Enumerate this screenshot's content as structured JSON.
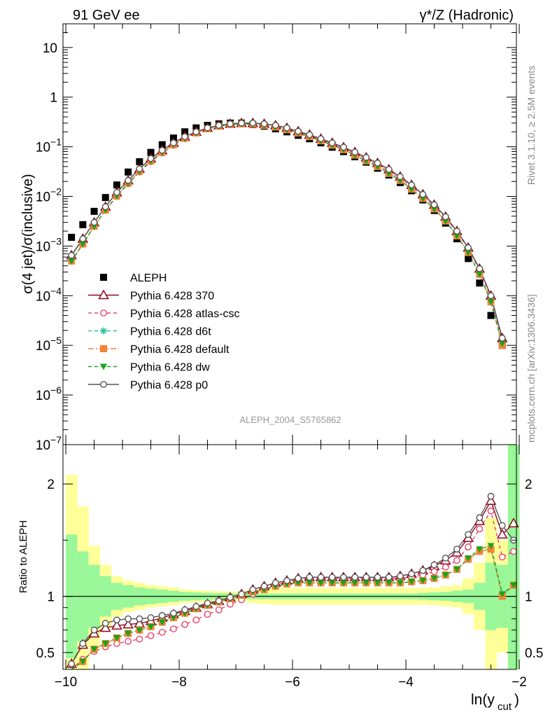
{
  "header": {
    "left": "91 GeV ee",
    "right": "γ*/Z (Hadronic)"
  },
  "side_text": {
    "rivet": "Rivet 3.1.10, ≥ 2.5M events",
    "mcplots": "mcplots.cern.ch [arXiv:1306.3436]"
  },
  "analysis_label": "ALEPH_2004_S5765862",
  "colors": {
    "data": "#000000",
    "p370": "#8b0a1e",
    "atlas": "#e8446a",
    "d6t": "#27c39e",
    "default": "#f28437",
    "dw": "#1aa31a",
    "p0": "#555555",
    "band_inner": "#99f799",
    "band_outer": "#ffff99"
  },
  "chart_data": [
    {
      "type": "line",
      "xlabel": "ln(y_cut)",
      "ylabel": "σ(4 jet)/σ(inclusive)",
      "xlim": [
        -10.05,
        -2.05
      ],
      "ylim": [
        1e-07,
        30
      ],
      "yscale": "log",
      "legend_position": "lower-left",
      "x_ticks": [
        "−10",
        "−8",
        "−6",
        "−4",
        "−2"
      ],
      "y_ticks": [
        "10",
        "1",
        "10⁻¹",
        "10⁻²",
        "10⁻³",
        "10⁻⁴",
        "10⁻⁵",
        "10⁻⁶",
        "10⁻⁷"
      ],
      "x": [
        -9.9,
        -9.7,
        -9.5,
        -9.3,
        -9.1,
        -8.9,
        -8.7,
        -8.5,
        -8.3,
        -8.1,
        -7.9,
        -7.7,
        -7.5,
        -7.3,
        -7.1,
        -6.9,
        -6.7,
        -6.5,
        -6.3,
        -6.1,
        -5.9,
        -5.7,
        -5.5,
        -5.3,
        -5.1,
        -4.9,
        -4.7,
        -4.5,
        -4.3,
        -4.1,
        -3.9,
        -3.7,
        -3.5,
        -3.3,
        -3.1,
        -2.9,
        -2.7,
        -2.5,
        -2.3,
        -2.1
      ],
      "series": [
        {
          "name": "ALEPH",
          "color_key": "data",
          "marker": "square-filled",
          "line": "none",
          "values": [
            0.0015,
            0.0027,
            0.005,
            0.0095,
            0.017,
            0.031,
            0.05,
            0.077,
            0.11,
            0.15,
            0.2,
            0.24,
            0.27,
            0.29,
            0.3,
            0.3,
            0.28,
            0.26,
            0.23,
            0.2,
            0.17,
            0.145,
            0.12,
            0.098,
            0.08,
            0.063,
            0.049,
            0.037,
            0.027,
            0.019,
            0.013,
            0.0085,
            0.0052,
            0.0029,
            0.0014,
            0.00056,
            0.00018,
            4e-05,
            1e-05,
            null
          ]
        },
        {
          "name": "Pythia 6.428 370",
          "color_key": "p370",
          "marker": "triangle-open",
          "line": "solid",
          "values": [
            0.00065,
            0.0014,
            0.003,
            0.0062,
            0.012,
            0.021,
            0.036,
            0.058,
            0.085,
            0.12,
            0.16,
            0.2,
            0.24,
            0.27,
            0.29,
            0.3,
            0.3,
            0.29,
            0.27,
            0.24,
            0.205,
            0.175,
            0.145,
            0.12,
            0.098,
            0.078,
            0.061,
            0.047,
            0.035,
            0.025,
            0.017,
            0.011,
            0.0068,
            0.0039,
            0.002,
            0.00093,
            0.00035,
            0.0001,
            1.4e-05,
            null
          ]
        },
        {
          "name": "Pythia 6.428 atlas-csc",
          "color_key": "atlas",
          "marker": "circle-open",
          "line": "dashed",
          "values": [
            0.0005,
            0.0011,
            0.0025,
            0.0053,
            0.01,
            0.018,
            0.031,
            0.05,
            0.075,
            0.107,
            0.145,
            0.19,
            0.23,
            0.26,
            0.28,
            0.29,
            0.29,
            0.28,
            0.26,
            0.23,
            0.2,
            0.17,
            0.14,
            0.115,
            0.093,
            0.074,
            0.057,
            0.043,
            0.032,
            0.023,
            0.016,
            0.01,
            0.0063,
            0.0037,
            0.0019,
            0.00088,
            0.00033,
            9e-05,
            1.3e-05,
            null
          ]
        },
        {
          "name": "Pythia 6.428 d6t",
          "color_key": "d6t",
          "marker": "star",
          "line": "dashed",
          "values": [
            0.0005,
            0.0011,
            0.0025,
            0.0053,
            0.0102,
            0.0185,
            0.032,
            0.052,
            0.077,
            0.11,
            0.148,
            0.19,
            0.23,
            0.26,
            0.28,
            0.29,
            0.285,
            0.27,
            0.25,
            0.22,
            0.19,
            0.16,
            0.132,
            0.108,
            0.087,
            0.068,
            0.052,
            0.04,
            0.029,
            0.021,
            0.014,
            0.0091,
            0.0056,
            0.0032,
            0.0016,
            0.00074,
            0.00027,
            7.5e-05,
            1.1e-05,
            null
          ]
        },
        {
          "name": "Pythia 6.428 default",
          "color_key": "default",
          "marker": "square-filled",
          "line": "dashdot",
          "values": [
            0.0005,
            0.0011,
            0.0025,
            0.0053,
            0.0102,
            0.0185,
            0.032,
            0.052,
            0.077,
            0.11,
            0.148,
            0.19,
            0.23,
            0.26,
            0.28,
            0.29,
            0.285,
            0.27,
            0.25,
            0.22,
            0.19,
            0.16,
            0.132,
            0.108,
            0.087,
            0.068,
            0.052,
            0.04,
            0.029,
            0.021,
            0.014,
            0.0091,
            0.0056,
            0.0032,
            0.0016,
            0.00074,
            0.00027,
            7.5e-05,
            1e-05,
            null
          ]
        },
        {
          "name": "Pythia 6.428 dw",
          "color_key": "dw",
          "marker": "triangle-down-filled",
          "line": "dashed",
          "values": [
            0.0005,
            0.0011,
            0.0025,
            0.0053,
            0.0102,
            0.0185,
            0.032,
            0.052,
            0.077,
            0.11,
            0.148,
            0.19,
            0.23,
            0.26,
            0.28,
            0.29,
            0.285,
            0.27,
            0.25,
            0.22,
            0.19,
            0.16,
            0.132,
            0.108,
            0.087,
            0.068,
            0.052,
            0.04,
            0.029,
            0.021,
            0.014,
            0.0091,
            0.0056,
            0.0032,
            0.0016,
            0.00074,
            0.00027,
            7.5e-05,
            1.1e-05,
            null
          ]
        },
        {
          "name": "Pythia 6.428 p0",
          "color_key": "p0",
          "marker": "circle-open",
          "line": "solid",
          "values": [
            0.00065,
            0.0014,
            0.003,
            0.0062,
            0.012,
            0.021,
            0.036,
            0.058,
            0.085,
            0.12,
            0.16,
            0.2,
            0.24,
            0.27,
            0.29,
            0.3,
            0.3,
            0.29,
            0.27,
            0.24,
            0.205,
            0.175,
            0.145,
            0.12,
            0.098,
            0.078,
            0.061,
            0.047,
            0.035,
            0.025,
            0.017,
            0.011,
            0.0068,
            0.0039,
            0.002,
            0.00093,
            0.00035,
            0.0001,
            1.4e-05,
            null
          ]
        }
      ]
    },
    {
      "type": "line",
      "xlabel": "ln(y_cut)",
      "ylabel": "Ratio to ALEPH",
      "xlim": [
        -10.05,
        -2.05
      ],
      "ylim": [
        0.35,
        2.35
      ],
      "reference_line": 1,
      "y_ticks": [
        "0.5",
        "1",
        "2"
      ],
      "x": [
        -9.9,
        -9.7,
        -9.5,
        -9.3,
        -9.1,
        -8.9,
        -8.7,
        -8.5,
        -8.3,
        -8.1,
        -7.9,
        -7.7,
        -7.5,
        -7.3,
        -7.1,
        -6.9,
        -6.7,
        -6.5,
        -6.3,
        -6.1,
        -5.9,
        -5.7,
        -5.5,
        -5.3,
        -5.1,
        -4.9,
        -4.7,
        -4.5,
        -4.3,
        -4.1,
        -3.9,
        -3.7,
        -3.5,
        -3.3,
        -3.1,
        -2.9,
        -2.7,
        -2.5,
        -2.3,
        -2.1
      ],
      "bands": {
        "inner_halfwidth": [
          0.55,
          0.4,
          0.28,
          0.18,
          0.12,
          0.1,
          0.08,
          0.07,
          0.06,
          0.05,
          0.04,
          0.035,
          0.03,
          0.028,
          0.027,
          0.025,
          0.025,
          0.025,
          0.025,
          0.025,
          0.025,
          0.025,
          0.025,
          0.025,
          0.025,
          0.025,
          0.025,
          0.025,
          0.025,
          0.025,
          0.025,
          0.03,
          0.035,
          0.04,
          0.05,
          0.06,
          0.12,
          0.3,
          0.28,
          1.5
        ],
        "outer_halfwidth": [
          1.08,
          0.8,
          0.45,
          0.28,
          0.18,
          0.14,
          0.12,
          0.1,
          0.09,
          0.08,
          0.06,
          0.055,
          0.05,
          0.045,
          0.043,
          0.045,
          0.06,
          0.07,
          0.075,
          0.075,
          0.075,
          0.075,
          0.075,
          0.075,
          0.075,
          0.075,
          0.075,
          0.075,
          0.075,
          0.075,
          0.075,
          0.075,
          0.08,
          0.09,
          0.1,
          0.16,
          0.3,
          0.7,
          0.5,
          1.5
        ]
      },
      "series": [
        {
          "name": "Pythia 6.428 370",
          "color_key": "p370",
          "marker": "triangle-open",
          "line": "solid",
          "values": [
            0.4,
            0.57,
            0.67,
            0.72,
            0.74,
            0.75,
            0.76,
            0.78,
            0.81,
            0.84,
            0.87,
            0.9,
            0.93,
            0.96,
            0.99,
            1.02,
            1.06,
            1.09,
            1.12,
            1.14,
            1.16,
            1.17,
            1.17,
            1.17,
            1.17,
            1.17,
            1.17,
            1.17,
            1.17,
            1.18,
            1.2,
            1.23,
            1.27,
            1.32,
            1.39,
            1.52,
            1.67,
            1.85,
            1.55,
            1.65
          ]
        },
        {
          "name": "Pythia 6.428 atlas-csc",
          "color_key": "atlas",
          "marker": "circle-open",
          "line": "dashed",
          "values": [
            0.33,
            0.44,
            0.51,
            0.55,
            0.58,
            0.6,
            0.62,
            0.65,
            0.68,
            0.71,
            0.75,
            0.79,
            0.84,
            0.88,
            0.93,
            0.97,
            1.02,
            1.06,
            1.1,
            1.13,
            1.15,
            1.16,
            1.16,
            1.16,
            1.16,
            1.16,
            1.16,
            1.16,
            1.16,
            1.16,
            1.17,
            1.19,
            1.22,
            1.26,
            1.32,
            1.44,
            1.6,
            1.76,
            1.35,
            1.4
          ]
        },
        {
          "name": "Pythia 6.428 d6t",
          "color_key": "d6t",
          "marker": "star",
          "line": "dashed",
          "values": [
            0.33,
            0.42,
            0.53,
            0.58,
            0.63,
            0.67,
            0.7,
            0.73,
            0.77,
            0.81,
            0.85,
            0.89,
            0.92,
            0.95,
            0.98,
            1.01,
            1.04,
            1.06,
            1.09,
            1.11,
            1.12,
            1.12,
            1.12,
            1.12,
            1.12,
            1.12,
            1.12,
            1.12,
            1.12,
            1.12,
            1.13,
            1.14,
            1.16,
            1.19,
            1.24,
            1.33,
            1.4,
            1.42,
            1.02,
            1.1
          ]
        },
        {
          "name": "Pythia 6.428 default",
          "color_key": "default",
          "marker": "square-filled",
          "line": "dashdot",
          "values": [
            0.33,
            0.42,
            0.53,
            0.58,
            0.63,
            0.67,
            0.7,
            0.73,
            0.77,
            0.81,
            0.85,
            0.89,
            0.92,
            0.95,
            0.98,
            1.01,
            1.04,
            1.06,
            1.09,
            1.11,
            1.12,
            1.12,
            1.12,
            1.12,
            1.12,
            1.12,
            1.12,
            1.12,
            1.12,
            1.12,
            1.13,
            1.14,
            1.16,
            1.19,
            1.24,
            1.33,
            1.4,
            1.42,
            1.0,
            1.1
          ]
        },
        {
          "name": "Pythia 6.428 dw",
          "color_key": "dw",
          "marker": "triangle-down-filled",
          "line": "dashed",
          "values": [
            0.33,
            0.42,
            0.53,
            0.58,
            0.63,
            0.67,
            0.7,
            0.73,
            0.77,
            0.81,
            0.85,
            0.89,
            0.92,
            0.95,
            0.98,
            1.01,
            1.04,
            1.06,
            1.09,
            1.11,
            1.12,
            1.12,
            1.12,
            1.12,
            1.12,
            1.12,
            1.12,
            1.12,
            1.12,
            1.12,
            1.13,
            1.14,
            1.16,
            1.19,
            1.24,
            1.34,
            1.42,
            1.45,
            1.02,
            1.1
          ]
        },
        {
          "name": "Pythia 6.428 p0",
          "color_key": "p0",
          "marker": "circle-open",
          "line": "solid",
          "values": [
            0.4,
            0.58,
            0.7,
            0.76,
            0.79,
            0.8,
            0.8,
            0.81,
            0.83,
            0.85,
            0.88,
            0.91,
            0.94,
            0.96,
            0.99,
            1.02,
            1.06,
            1.09,
            1.12,
            1.14,
            1.16,
            1.17,
            1.17,
            1.17,
            1.17,
            1.17,
            1.17,
            1.17,
            1.17,
            1.18,
            1.2,
            1.23,
            1.28,
            1.34,
            1.42,
            1.55,
            1.7,
            1.89,
            1.63,
            1.5
          ]
        }
      ]
    }
  ]
}
